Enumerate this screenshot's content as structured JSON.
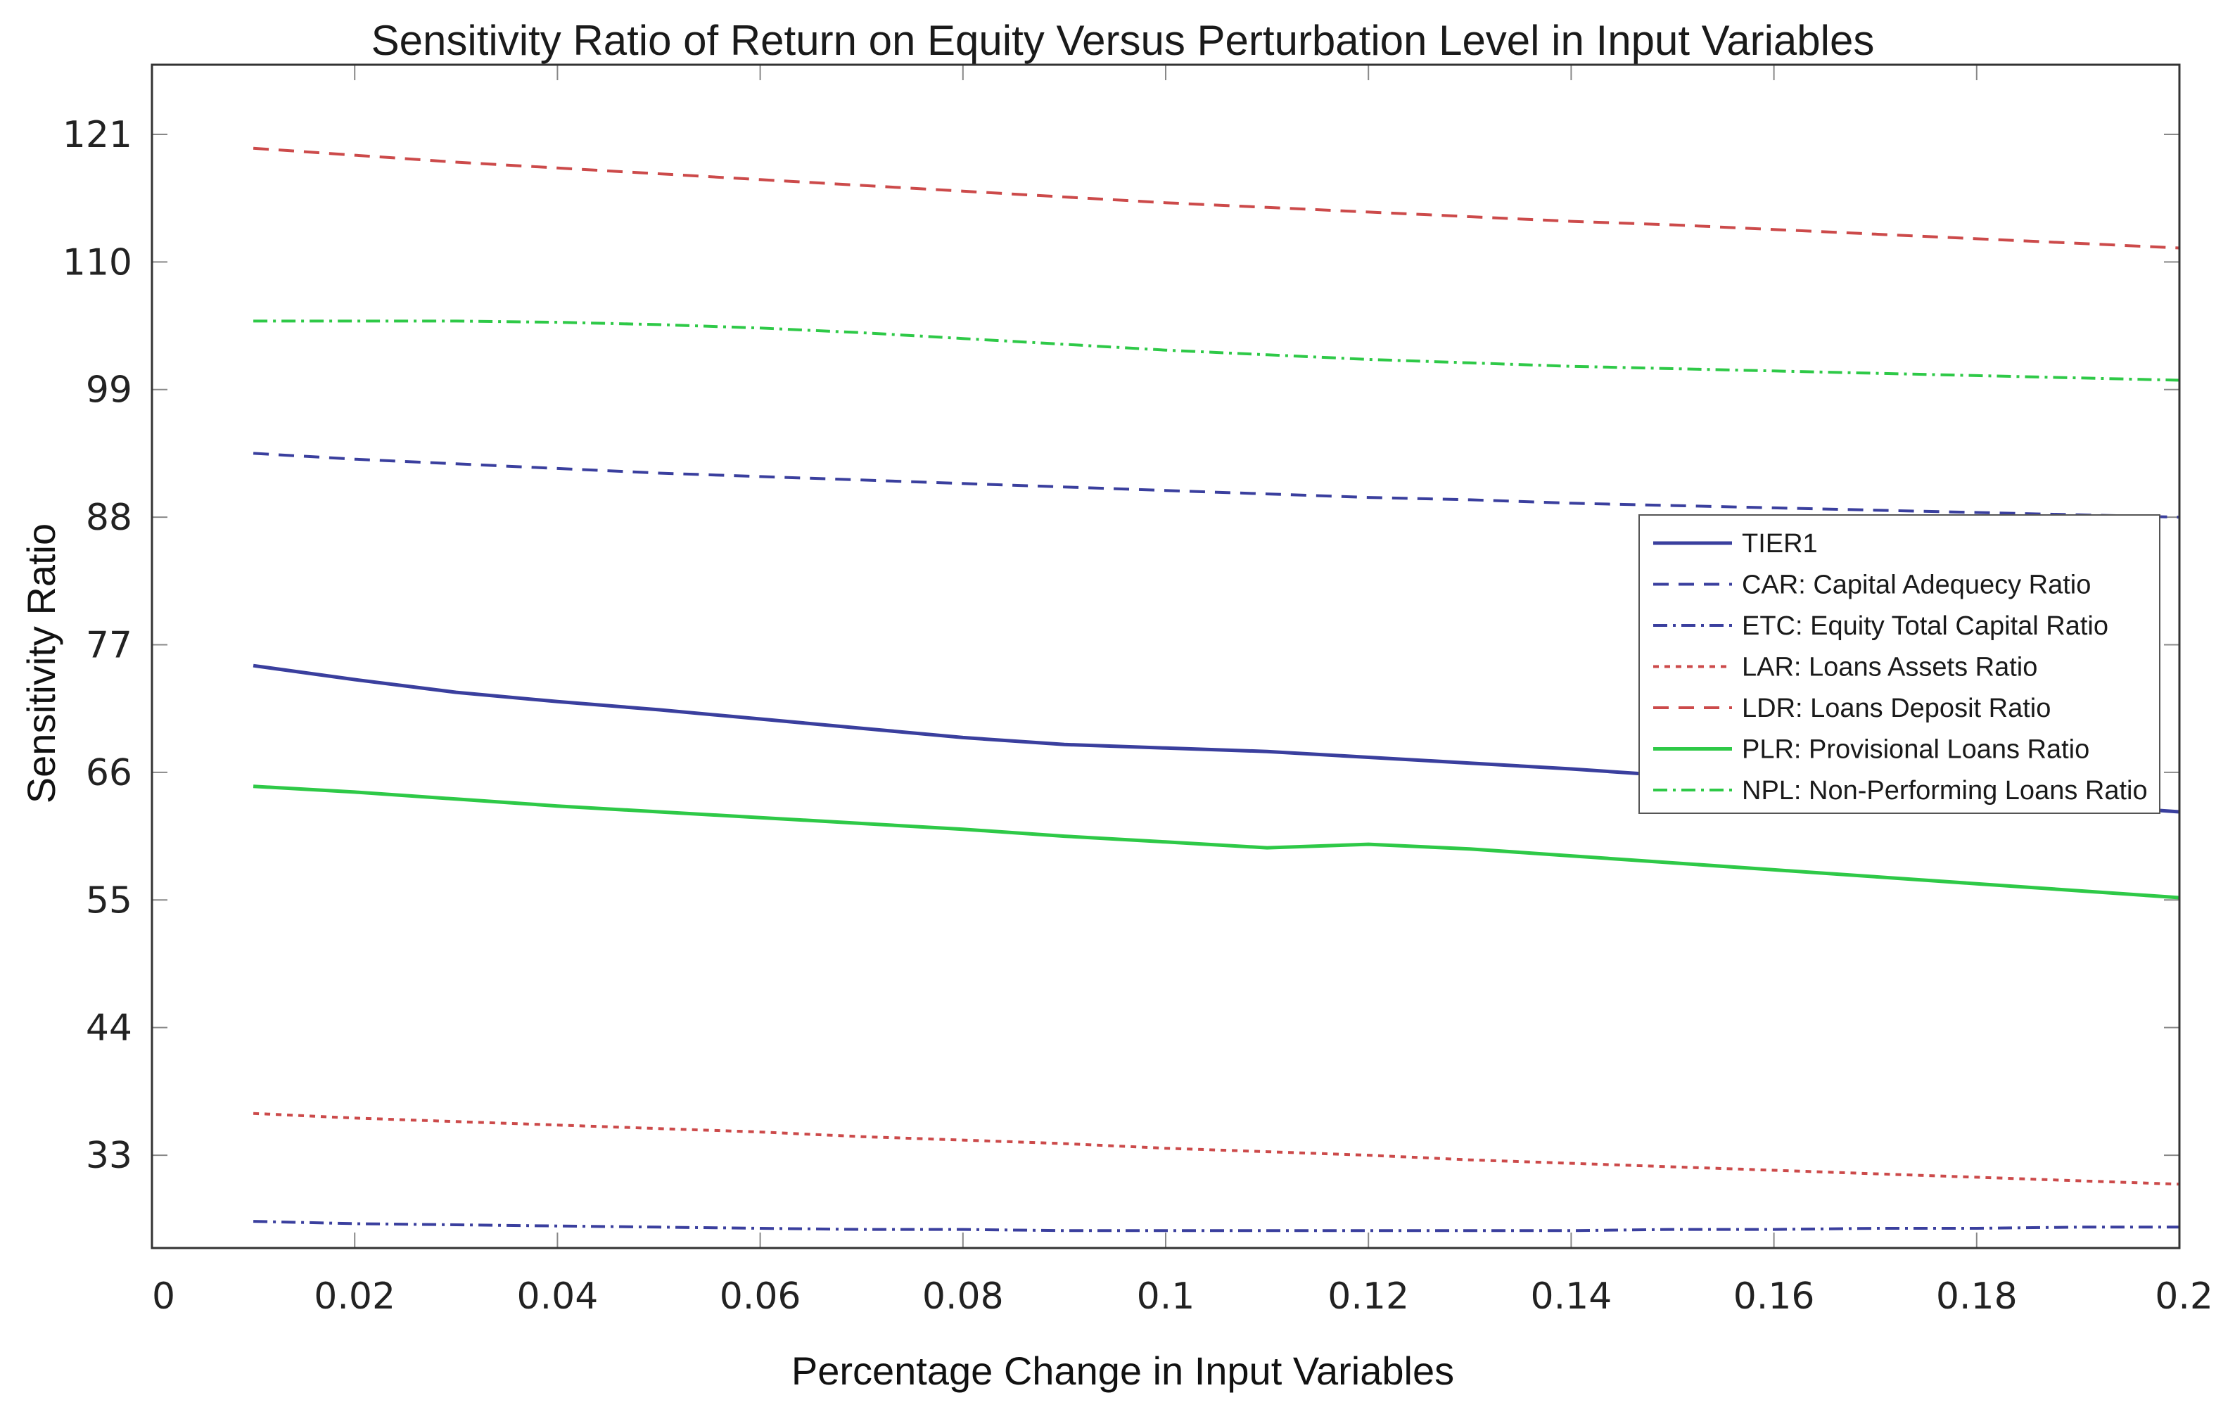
{
  "chart_data": {
    "type": "line",
    "title": "Sensitivity Ratio of Return on Equity Versus Perturbation Level in Input Variables",
    "xlabel": "Percentage Change in Input Variables",
    "ylabel": "Sensitivity Ratio",
    "xlim": [
      0,
      0.2
    ],
    "ylim": [
      25,
      127
    ],
    "x_ticks": [
      0,
      0.02,
      0.04,
      0.06,
      0.08,
      0.1,
      0.12,
      0.14,
      0.16,
      0.18,
      0.2
    ],
    "x_tick_labels": [
      "0",
      "0.02",
      "0.04",
      "0.06",
      "0.08",
      "0.1",
      "0.12",
      "0.14",
      "0.16",
      "0.18",
      "0.2"
    ],
    "y_ticks": [
      33,
      44,
      55,
      66,
      77,
      88,
      99,
      110,
      121
    ],
    "y_tick_labels": [
      "33",
      "44",
      "55",
      "66",
      "77",
      "88",
      "99",
      "110",
      "121"
    ],
    "legend_position": "right",
    "x": [
      0.01,
      0.02,
      0.03,
      0.04,
      0.05,
      0.06,
      0.07,
      0.08,
      0.09,
      0.1,
      0.11,
      0.12,
      0.13,
      0.14,
      0.15,
      0.16,
      0.17,
      0.18,
      0.19,
      0.2
    ],
    "series": [
      {
        "name": "TIER1",
        "color": "#3a3f9e",
        "dash": "solid",
        "values": [
          75.2,
          74.0,
          72.9,
          72.1,
          71.4,
          70.6,
          69.8,
          69.0,
          68.4,
          68.1,
          67.8,
          67.3,
          66.8,
          66.3,
          65.7,
          65.2,
          64.6,
          63.9,
          63.2,
          62.6
        ]
      },
      {
        "name": "CAR: Capital Adequecy Ratio",
        "color": "#3a3f9e",
        "dash": "dashed",
        "values": [
          93.5,
          93.0,
          92.6,
          92.2,
          91.8,
          91.5,
          91.2,
          90.9,
          90.6,
          90.3,
          90.0,
          89.7,
          89.5,
          89.2,
          89.0,
          88.8,
          88.6,
          88.4,
          88.2,
          88.0
        ]
      },
      {
        "name": "ETC: Equity Total Capital Ratio",
        "color": "#3a3f9e",
        "dash": "dashdot",
        "values": [
          27.3,
          27.1,
          27.0,
          26.9,
          26.8,
          26.7,
          26.6,
          26.6,
          26.5,
          26.5,
          26.5,
          26.5,
          26.5,
          26.5,
          26.6,
          26.6,
          26.7,
          26.7,
          26.8,
          26.8
        ]
      },
      {
        "name": "LAR: Loans Assets Ratio",
        "color": "#cc4a4a",
        "dash": "dotted",
        "values": [
          36.6,
          36.2,
          35.9,
          35.6,
          35.3,
          35.0,
          34.6,
          34.3,
          34.0,
          33.6,
          33.3,
          33.0,
          32.6,
          32.3,
          32.0,
          31.7,
          31.4,
          31.1,
          30.8,
          30.5
        ]
      },
      {
        "name": "LDR: Loans Deposit Ratio",
        "color": "#cc4a4a",
        "dash": "dashed",
        "values": [
          119.8,
          119.2,
          118.6,
          118.1,
          117.6,
          117.1,
          116.6,
          116.1,
          115.6,
          115.1,
          114.7,
          114.3,
          113.9,
          113.5,
          113.2,
          112.8,
          112.4,
          112.0,
          111.6,
          111.2
        ]
      },
      {
        "name": "PLR: Provisional Loans Ratio",
        "color": "#2ec947",
        "dash": "solid",
        "values": [
          64.8,
          64.3,
          63.7,
          63.1,
          62.6,
          62.1,
          61.6,
          61.1,
          60.5,
          60.0,
          59.5,
          59.8,
          59.4,
          58.8,
          58.2,
          57.6,
          57.0,
          56.4,
          55.8,
          55.2
        ]
      },
      {
        "name": "NPL: Non-Performing Loans Ratio",
        "color": "#2ec947",
        "dash": "dashdot",
        "values": [
          104.9,
          104.9,
          104.9,
          104.8,
          104.6,
          104.3,
          103.9,
          103.4,
          102.9,
          102.4,
          102.0,
          101.6,
          101.3,
          101.0,
          100.8,
          100.6,
          100.4,
          100.2,
          100.0,
          99.8
        ]
      }
    ]
  }
}
